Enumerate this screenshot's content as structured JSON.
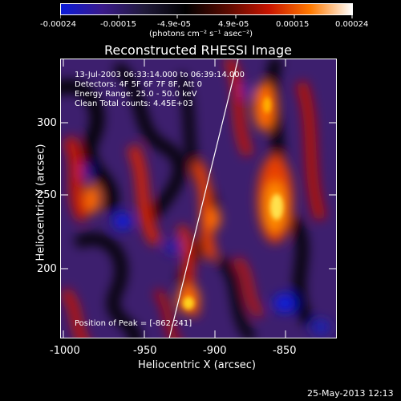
{
  "colorbar": {
    "tick_labels": [
      "-0.00024",
      "-0.00015",
      "-4.9e-05",
      "4.9e-05",
      "0.00015",
      "0.00024"
    ],
    "units": "(photons cm⁻² s⁻¹ asec⁻²)"
  },
  "title": "Reconstructed RHESSI Image",
  "info": {
    "line1": "13-Jul-2003 06:33:14.000 to 06:39:14.000",
    "line2": "Detectors: 4F 5F 6F 7F 8F, Att 0",
    "line3": "Energy Range: 25.0 - 50.0 keV",
    "line4": "Clean     Total counts: 4.45E+03"
  },
  "peak_text": "Position of Peak = [-862,241]",
  "axes": {
    "x_label": "Heliocentric X (arcsec)",
    "y_label": "Heliocentric Y (arcsec)",
    "x_ticks": [
      "-1000",
      "-950",
      "-900",
      "-850"
    ],
    "y_ticks": [
      "300",
      "250",
      "200"
    ]
  },
  "timestamp": "25-May-2013 12:13",
  "colors": {
    "colormap": [
      "#0b1bd8",
      "#3a1a8a",
      "#201a3a",
      "#000000",
      "#5a0a00",
      "#c81400",
      "#ff7a00",
      "#ffffff"
    ]
  }
}
